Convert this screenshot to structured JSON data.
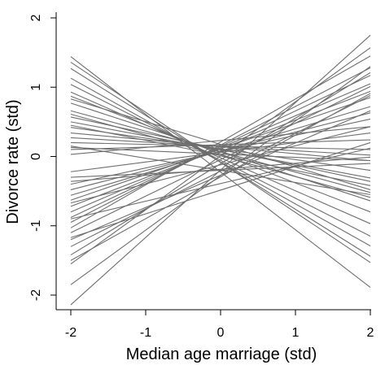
{
  "chart_data": {
    "type": "line",
    "title": "",
    "xlabel": "Median age marriage (std)",
    "ylabel": "Divorce rate (std)",
    "xlim": [
      -2,
      2
    ],
    "ylim": [
      -2,
      2
    ],
    "xticks": [
      -2,
      -1,
      0,
      1,
      2
    ],
    "yticks": [
      -2,
      -1,
      0,
      1,
      2
    ],
    "x_tick_labels": [
      "-2",
      "-1",
      "0",
      "1",
      "2"
    ],
    "y_tick_labels": [
      "-2",
      "-1",
      "0",
      "1",
      "2"
    ],
    "grid": false,
    "line_color": "#6e6e6e",
    "x": [
      -2,
      2
    ],
    "series": [
      {
        "values": [
          1.44,
          -1.89
        ]
      },
      {
        "values": [
          1.36,
          -1.53
        ]
      },
      {
        "values": [
          1.13,
          -1.29
        ]
      },
      {
        "values": [
          0.93,
          -0.97
        ]
      },
      {
        "values": [
          0.87,
          -0.8
        ]
      },
      {
        "values": [
          0.77,
          -0.64
        ]
      },
      {
        "values": [
          0.66,
          -0.52
        ]
      },
      {
        "values": [
          0.57,
          -0.36
        ]
      },
      {
        "values": [
          0.5,
          -0.31
        ]
      },
      {
        "values": [
          0.42,
          -0.2
        ]
      },
      {
        "values": [
          0.34,
          -0.06
        ]
      },
      {
        "values": [
          0.27,
          0.02
        ]
      },
      {
        "values": [
          0.2,
          0.1
        ]
      },
      {
        "values": [
          0.15,
          -0.55
        ]
      },
      {
        "values": [
          0.1,
          0.24
        ]
      },
      {
        "values": [
          0.03,
          0.43
        ]
      },
      {
        "values": [
          -0.22,
          0.34
        ]
      },
      {
        "values": [
          -0.3,
          -0.1
        ]
      },
      {
        "values": [
          -0.4,
          0.54
        ]
      },
      {
        "values": [
          -0.48,
          0.63
        ]
      },
      {
        "values": [
          -0.56,
          0.72
        ]
      },
      {
        "values": [
          -0.63,
          0.85
        ]
      },
      {
        "values": [
          -0.72,
          0.94
        ]
      },
      {
        "values": [
          -0.8,
          1.05
        ]
      },
      {
        "values": [
          -0.88,
          1.17
        ]
      },
      {
        "values": [
          -0.95,
          1.28
        ]
      },
      {
        "values": [
          -1.03,
          1.45
        ]
      },
      {
        "values": [
          -1.1,
          1.01
        ]
      },
      {
        "values": [
          -1.2,
          0.66
        ]
      },
      {
        "values": [
          -1.3,
          0.88
        ]
      },
      {
        "values": [
          -1.42,
          1.21
        ]
      },
      {
        "values": [
          -1.55,
          1.57
        ]
      },
      {
        "values": [
          -1.85,
          1.3
        ]
      },
      {
        "values": [
          -2.14,
          1.75
        ]
      },
      {
        "values": [
          1.27,
          -1.44
        ]
      },
      {
        "values": [
          1.04,
          -1.15
        ]
      },
      {
        "values": [
          0.83,
          -0.48
        ]
      },
      {
        "values": [
          0.61,
          -0.59
        ]
      },
      {
        "values": [
          0.45,
          -0.42
        ]
      },
      {
        "values": [
          0.13,
          -0.06
        ]
      },
      {
        "values": [
          -0.36,
          -0.01
        ]
      },
      {
        "values": [
          -0.67,
          0.43
        ]
      },
      {
        "values": [
          -0.9,
          0.12
        ]
      },
      {
        "values": [
          -1.17,
          0.2
        ]
      },
      {
        "values": [
          -1.5,
          0.91
        ]
      }
    ]
  }
}
